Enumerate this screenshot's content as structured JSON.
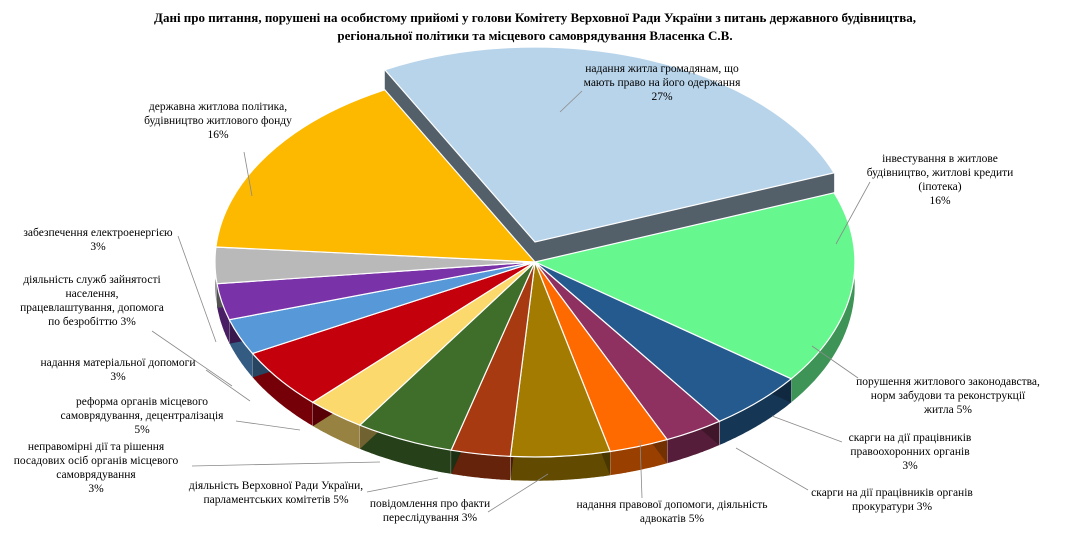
{
  "chart_data": {
    "type": "pie",
    "title_lines": [
      "Дані про питання, порушені на особистому прийомі у голови Комітету Верховної Ради України з питань державного будівництва,",
      "регіональної політики та місцевого самоврядування Власенка С.В."
    ],
    "slices": [
      {
        "label": [
          "надання житла громадянам, що",
          "мають право на його одержання",
          "27%"
        ],
        "value": 27,
        "color": "#b8d4ea"
      },
      {
        "label": [
          "інвестування в житлове",
          "будівництво, житлові кредити",
          "(іпотека)",
          "16%"
        ],
        "value": 16,
        "color": "#66f78f"
      },
      {
        "label": [
          "порушення житлового законодавства,",
          "норм забудови та реконструкції",
          "житла 5%"
        ],
        "value": 5,
        "color": "#255a8e"
      },
      {
        "label": [
          "скарги на дії працівників",
          "правоохоронних органів",
          "3%"
        ],
        "value": 3,
        "color": "#8e3060"
      },
      {
        "label": [
          "скарги на дії працівників органів",
          "прокуратури 3%"
        ],
        "value": 3,
        "color": "#ff6a00"
      },
      {
        "label": [
          "надання правової допомоги, діяльність",
          "адвокатів 5%"
        ],
        "value": 5,
        "color": "#a37b00"
      },
      {
        "label": [
          "повідомлення про факти",
          "переслідування 3%"
        ],
        "value": 3,
        "color": "#a83a12"
      },
      {
        "label": [
          "діяльність Верховної Ради України,",
          "парламентських комітетів 5%"
        ],
        "value": 5,
        "color": "#3f6d2a"
      },
      {
        "label": [
          "неправомірні дії та рішення",
          "посадових осіб органів місцевого",
          "самоврядування",
          "3%"
        ],
        "value": 3,
        "color": "#fcd96c"
      },
      {
        "label": [
          "реформа органів місцевого",
          "самоврядування, децентралізація",
          "5%"
        ],
        "value": 5,
        "color": "#c3000b"
      },
      {
        "label": [
          "надання матеріальної допомоги",
          "3%"
        ],
        "value": 3,
        "color": "#5698d8"
      },
      {
        "label": [
          "діяльність служб зайнятості",
          "населення,",
          "працевлаштування, допомога",
          "по безробіттю 3%"
        ],
        "value": 3,
        "color": "#7a32a8"
      },
      {
        "label": [
          "забезпечення електроенергією",
          "3%"
        ],
        "value": 3,
        "color": "#b9b9b9"
      },
      {
        "label": [
          "державна житлова політика,",
          "будівництво житлового фонду",
          "16%"
        ],
        "value": 16,
        "color": "#fcb900"
      }
    ]
  }
}
